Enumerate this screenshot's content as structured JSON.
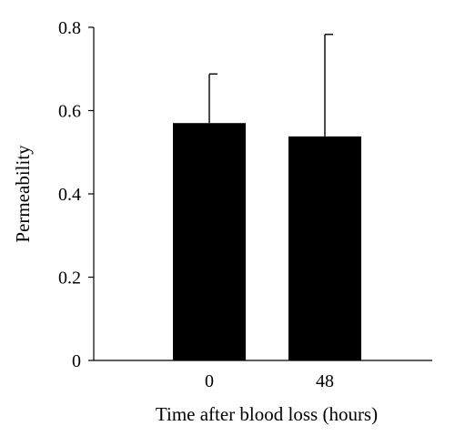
{
  "chart_data": {
    "type": "bar",
    "categories": [
      "0",
      "48"
    ],
    "values": [
      0.57,
      0.538
    ],
    "error_upper": [
      0.688,
      0.783
    ],
    "xlabel": "Time after blood loss (hours)",
    "ylabel": "Permeability",
    "ylim": [
      0,
      0.8
    ],
    "yticks": [
      0,
      0.2,
      0.4,
      0.6,
      0.8
    ],
    "ytick_labels": [
      "0",
      "0.2",
      "0.4",
      "0.6",
      "0.8"
    ],
    "grid": false,
    "legend": "none",
    "colors": {
      "bar": "#000000",
      "axis": "#000000",
      "background": "#ffffff"
    }
  }
}
